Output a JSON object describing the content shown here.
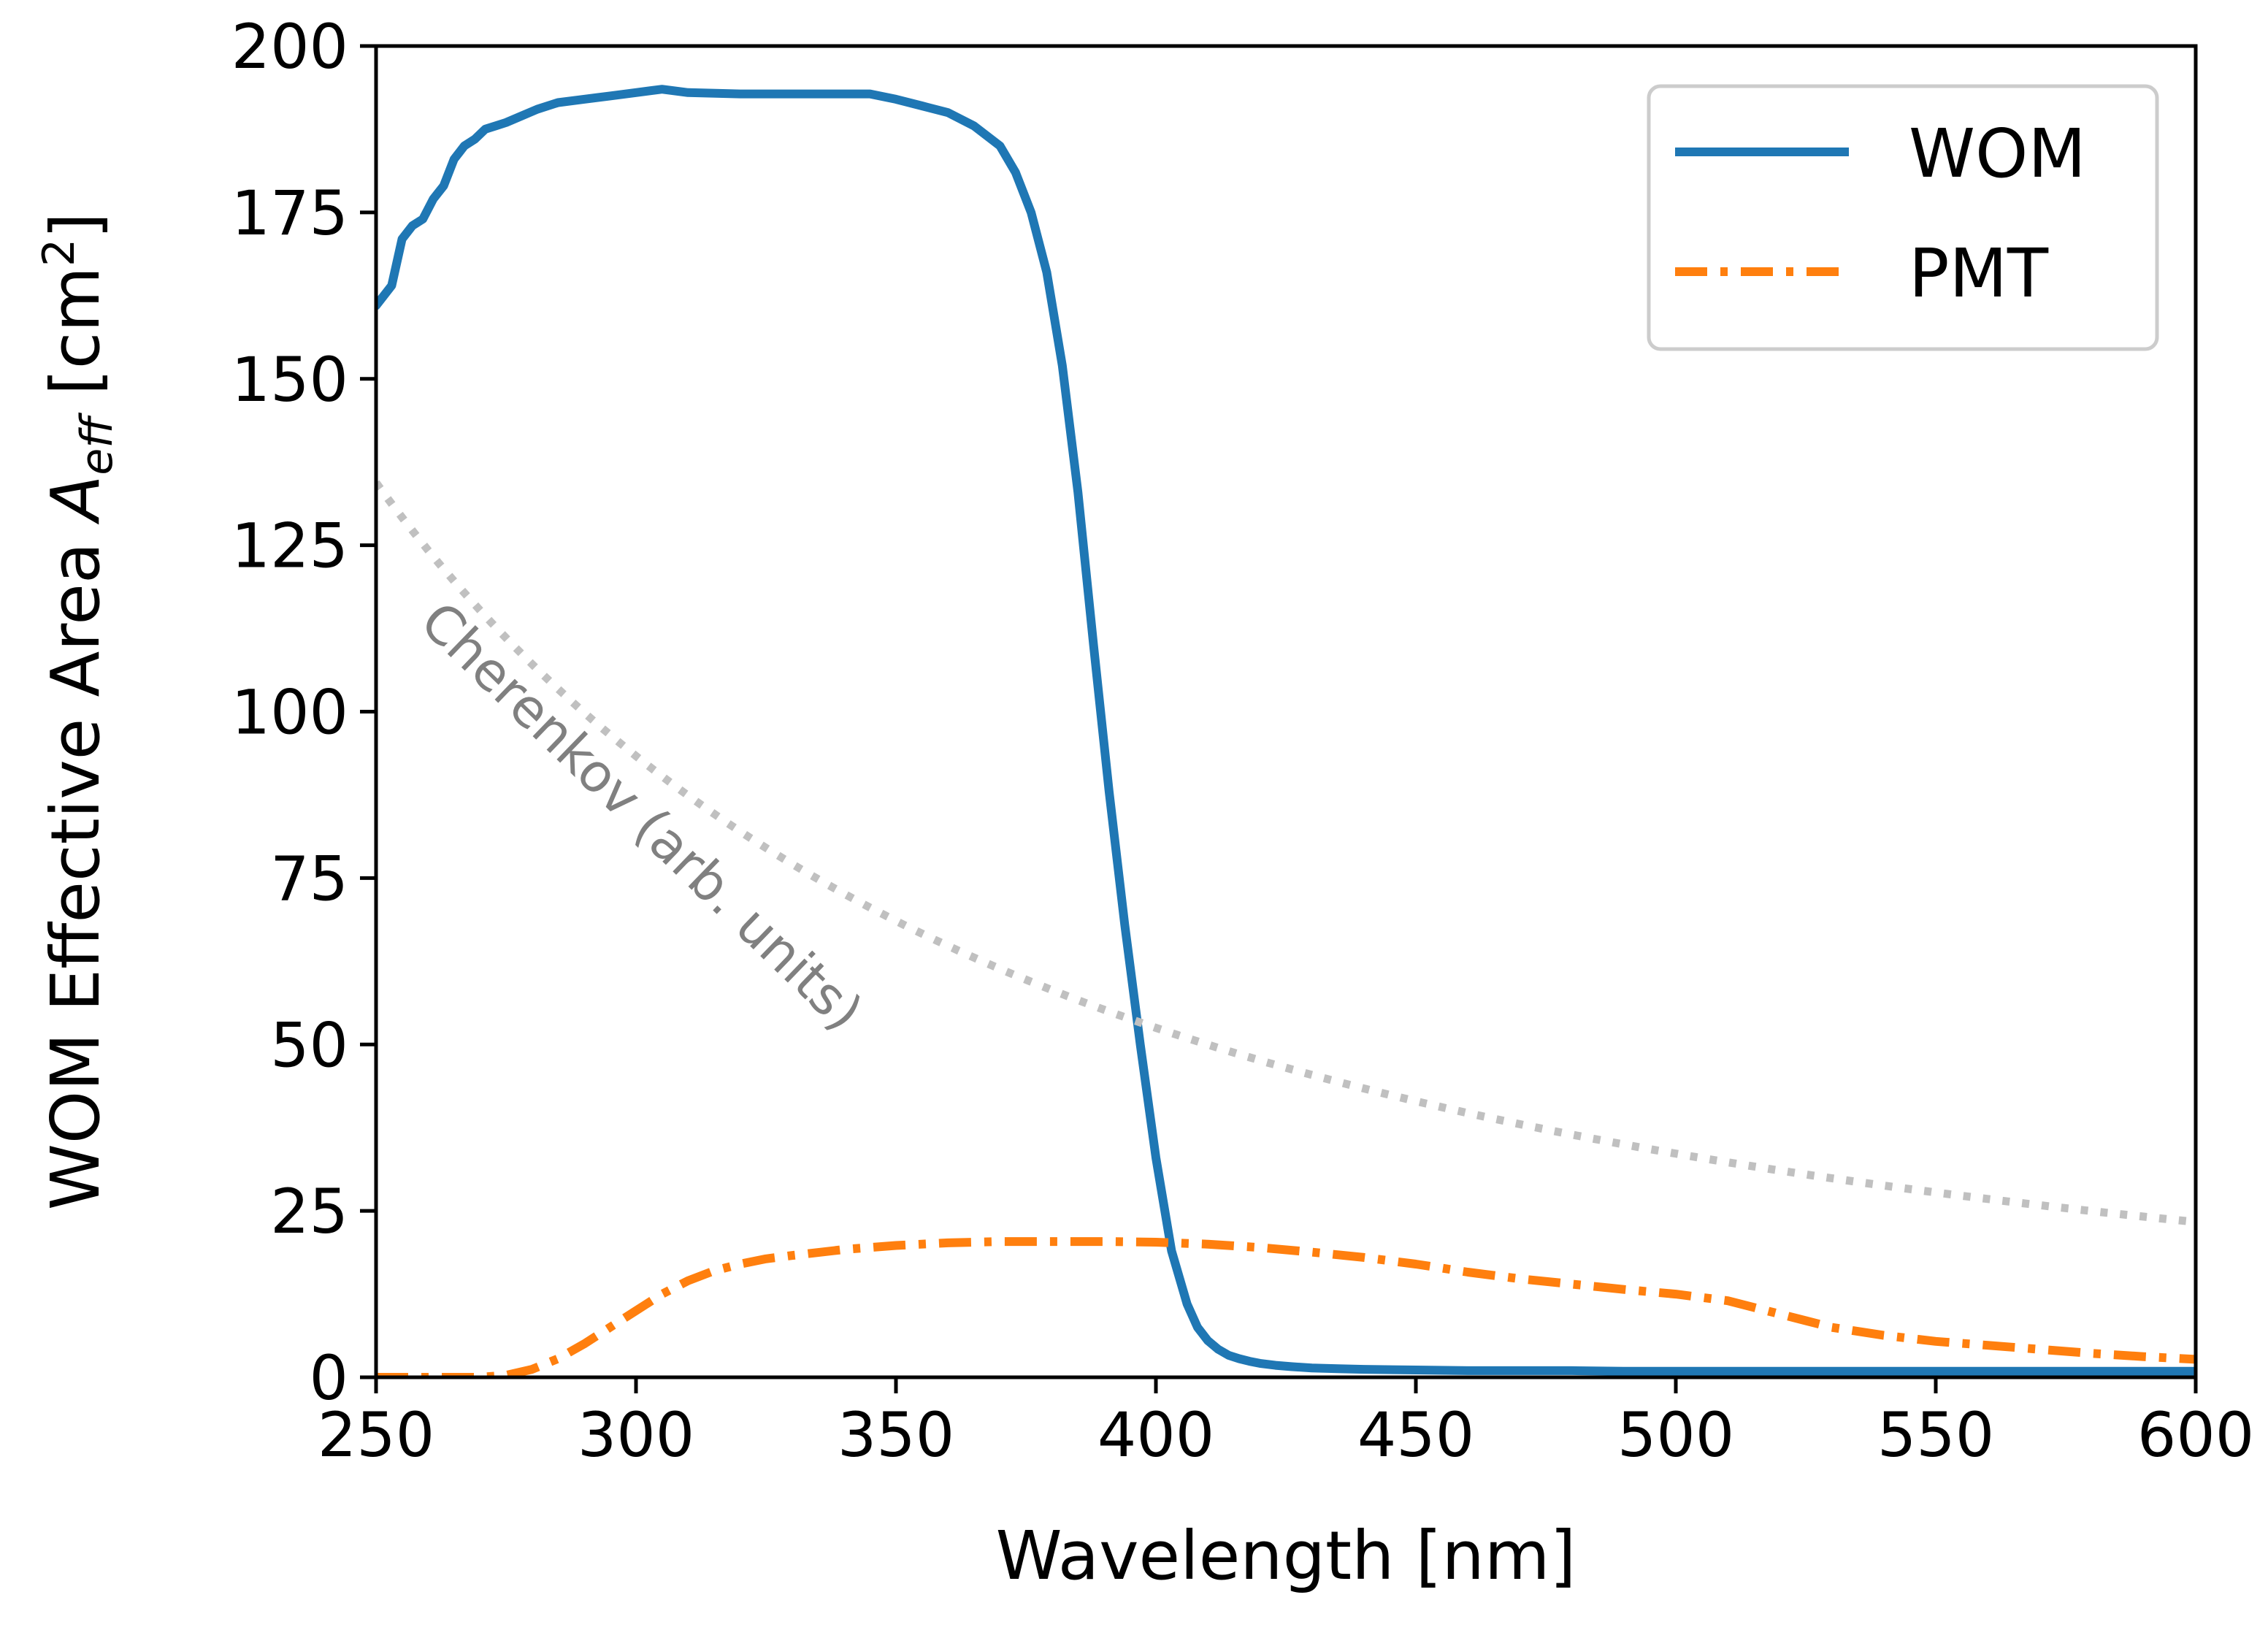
{
  "chart_data": {
    "type": "line",
    "title": "",
    "xlabel": "Wavelength [nm]",
    "ylabel_parts": {
      "main": "WOM Effective Area ",
      "symbol": "A",
      "subscript": "eff",
      "unit_open": " [cm",
      "superscript": "2",
      "unit_close": "]"
    },
    "xlim": [
      250,
      600
    ],
    "ylim": [
      0,
      200
    ],
    "xticks": [
      250,
      300,
      350,
      400,
      450,
      500,
      550,
      600
    ],
    "yticks": [
      0,
      25,
      50,
      75,
      100,
      125,
      150,
      175,
      200
    ],
    "legend_position": "top-right",
    "series": [
      {
        "name": "WOM",
        "color": "#1f77b4",
        "style": "solid",
        "in_legend": true,
        "x": [
          250,
          253,
          255,
          257,
          259,
          261,
          263,
          265,
          267,
          269,
          271,
          273,
          275,
          278,
          281,
          285,
          290,
          295,
          300,
          305,
          310,
          320,
          330,
          340,
          345,
          350,
          355,
          360,
          365,
          370,
          373,
          376,
          379,
          382,
          385,
          388,
          391,
          394,
          397,
          400,
          403,
          406,
          408,
          410,
          412,
          414,
          416,
          418,
          420,
          423,
          426,
          430,
          435,
          440,
          450,
          460,
          470,
          480,
          490,
          500,
          520,
          540,
          560,
          580,
          600
        ],
        "y": [
          161,
          164,
          171,
          173,
          174,
          177,
          179,
          183,
          185,
          186,
          187.5,
          188,
          188.5,
          189.5,
          190.5,
          191.5,
          192,
          192.5,
          193,
          193.5,
          193,
          192.8,
          192.8,
          192.8,
          192.8,
          192,
          191,
          190,
          188,
          185,
          181,
          175,
          166,
          152,
          133,
          110,
          88,
          68,
          50,
          33,
          19,
          11,
          7.5,
          5.5,
          4.2,
          3.3,
          2.8,
          2.4,
          2.1,
          1.8,
          1.6,
          1.4,
          1.3,
          1.2,
          1.1,
          1.0,
          1.0,
          1.0,
          0.9,
          0.9,
          0.9,
          0.9,
          0.9,
          0.9,
          0.9
        ]
      },
      {
        "name": "PMT",
        "color": "#ff7f0e",
        "style": "dashdot",
        "in_legend": true,
        "x": [
          250,
          260,
          270,
          275,
          280,
          285,
          290,
          295,
          300,
          305,
          310,
          315,
          320,
          325,
          330,
          340,
          350,
          360,
          370,
          380,
          390,
          400,
          410,
          420,
          430,
          440,
          450,
          460,
          470,
          480,
          490,
          500,
          510,
          515,
          520,
          525,
          530,
          540,
          550,
          560,
          570,
          580,
          590,
          600
        ],
        "y": [
          0,
          0,
          0,
          0.3,
          1.2,
          2.8,
          5,
          7.5,
          10,
          12.5,
          14.5,
          16,
          17,
          17.8,
          18.3,
          19.2,
          19.8,
          20.2,
          20.4,
          20.4,
          20.4,
          20.3,
          20,
          19.5,
          18.8,
          18,
          17,
          15.8,
          14.8,
          14,
          13.2,
          12.5,
          11.5,
          10.5,
          9.5,
          8.5,
          7.5,
          6.3,
          5.4,
          4.8,
          4.2,
          3.6,
          3.1,
          2.7
        ]
      },
      {
        "name": "Cherenkov (arb. units)",
        "color": "#c0c0c0",
        "style": "dotted",
        "in_legend": false,
        "label_color": "#808080",
        "function": "y = 8400000 / x^2"
      }
    ],
    "annotations": [
      {
        "text": "Cherenkov (arb. units)",
        "x": 258,
        "y": 113,
        "rotation_deg": 44,
        "color": "#808080"
      }
    ]
  }
}
